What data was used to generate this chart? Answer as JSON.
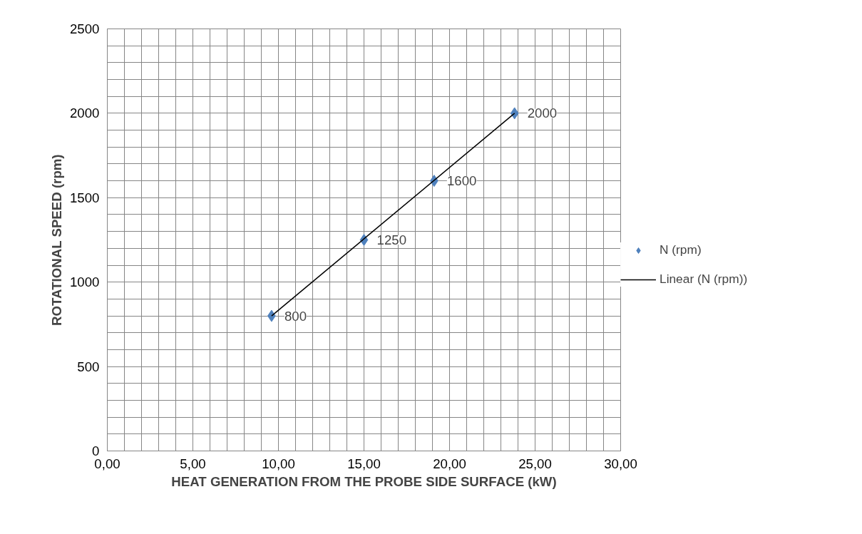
{
  "chart_data": {
    "type": "scatter",
    "xlabel": "HEAT GENERATION FROM THE PROBE SIDE SURFACE (kW)",
    "ylabel": "ROTATIONAL SPEED (rpm)",
    "series": [
      {
        "name": "N (rpm)",
        "color": "#4f81bd",
        "marker": "diamond",
        "x": [
          9.6,
          15.0,
          19.1,
          23.8
        ],
        "values": [
          800,
          1250,
          1600,
          2000
        ],
        "value_labels": [
          "800",
          "1250",
          "1600",
          "2000"
        ]
      },
      {
        "name": "Linear (N (rpm))",
        "type": "line",
        "color": "#000000",
        "marker": "none",
        "line_style": "solid",
        "x": [
          9.6,
          23.8
        ],
        "values": [
          800,
          2000
        ]
      }
    ],
    "legend": "right",
    "grid": true,
    "xlim": [
      0,
      30
    ],
    "ylim": [
      0,
      2500
    ],
    "xticks": [
      {
        "value": 0,
        "label": "0,00"
      },
      {
        "value": 1,
        "label": null
      },
      {
        "value": 2,
        "label": null
      },
      {
        "value": 3,
        "label": null
      },
      {
        "value": 4,
        "label": null
      },
      {
        "value": 5,
        "label": "5,00"
      },
      {
        "value": 6,
        "label": null
      },
      {
        "value": 7,
        "label": null
      },
      {
        "value": 8,
        "label": null
      },
      {
        "value": 9,
        "label": null
      },
      {
        "value": 10,
        "label": "10,00"
      },
      {
        "value": 11,
        "label": null
      },
      {
        "value": 12,
        "label": null
      },
      {
        "value": 13,
        "label": null
      },
      {
        "value": 14,
        "label": null
      },
      {
        "value": 15,
        "label": "15,00"
      },
      {
        "value": 16,
        "label": null
      },
      {
        "value": 17,
        "label": null
      },
      {
        "value": 18,
        "label": null
      },
      {
        "value": 19,
        "label": null
      },
      {
        "value": 20,
        "label": "20,00"
      },
      {
        "value": 21,
        "label": null
      },
      {
        "value": 22,
        "label": null
      },
      {
        "value": 23,
        "label": null
      },
      {
        "value": 24,
        "label": null
      },
      {
        "value": 25,
        "label": "25,00"
      },
      {
        "value": 26,
        "label": null
      },
      {
        "value": 27,
        "label": null
      },
      {
        "value": 28,
        "label": null
      },
      {
        "value": 29,
        "label": null
      },
      {
        "value": 30,
        "label": "30,00"
      }
    ],
    "yticks": [
      0,
      {
        "value": 100,
        "label": null
      },
      {
        "value": 200,
        "label": null
      },
      {
        "value": 300,
        "label": null
      },
      {
        "value": 400,
        "label": null
      },
      500,
      {
        "value": 600,
        "label": null
      },
      {
        "value": 700,
        "label": null
      },
      {
        "value": 800,
        "label": null
      },
      {
        "value": 900,
        "label": null
      },
      1000,
      {
        "value": 1100,
        "label": null
      },
      {
        "value": 1200,
        "label": null
      },
      {
        "value": 1300,
        "label": null
      },
      {
        "value": 1400,
        "label": null
      },
      1500,
      {
        "value": 1600,
        "label": null
      },
      {
        "value": 1700,
        "label": null
      },
      {
        "value": 1800,
        "label": null
      },
      {
        "value": 1900,
        "label": null
      },
      2000,
      {
        "value": 2100,
        "label": null
      },
      {
        "value": 2200,
        "label": null
      },
      {
        "value": 2300,
        "label": null
      },
      {
        "value": 2400,
        "label": null
      },
      2500
    ]
  }
}
